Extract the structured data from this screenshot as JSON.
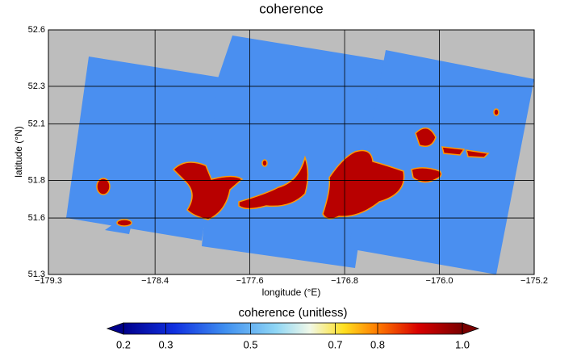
{
  "chart_data": {
    "type": "raster-map",
    "title": "coherence",
    "x_label": "longitude (°E)",
    "y_label": "latitude (°N)",
    "xlim": [
      -179.3,
      -175.2
    ],
    "xticks": [
      {
        "value": -179.3,
        "label": "−179.3"
      },
      {
        "value": -178.4,
        "label": "−178.4"
      },
      {
        "value": -177.6,
        "label": "−177.6"
      },
      {
        "value": -176.8,
        "label": "−176.8"
      },
      {
        "value": -176.0,
        "label": "−176.0"
      },
      {
        "value": -175.2,
        "label": "−175.2"
      }
    ],
    "ylim": [
      51.3,
      52.6
    ],
    "yticks": [
      51.3,
      51.6,
      51.8,
      52.1,
      52.3,
      52.6
    ],
    "grid": true,
    "colorbar": {
      "label": "coherence (unitless)",
      "lim": [
        0.2,
        1.0
      ],
      "ticks": [
        0.2,
        0.3,
        0.5,
        0.7,
        0.8,
        {
          "value": 1.0,
          "label": "1.0"
        }
      ]
    }
  }
}
